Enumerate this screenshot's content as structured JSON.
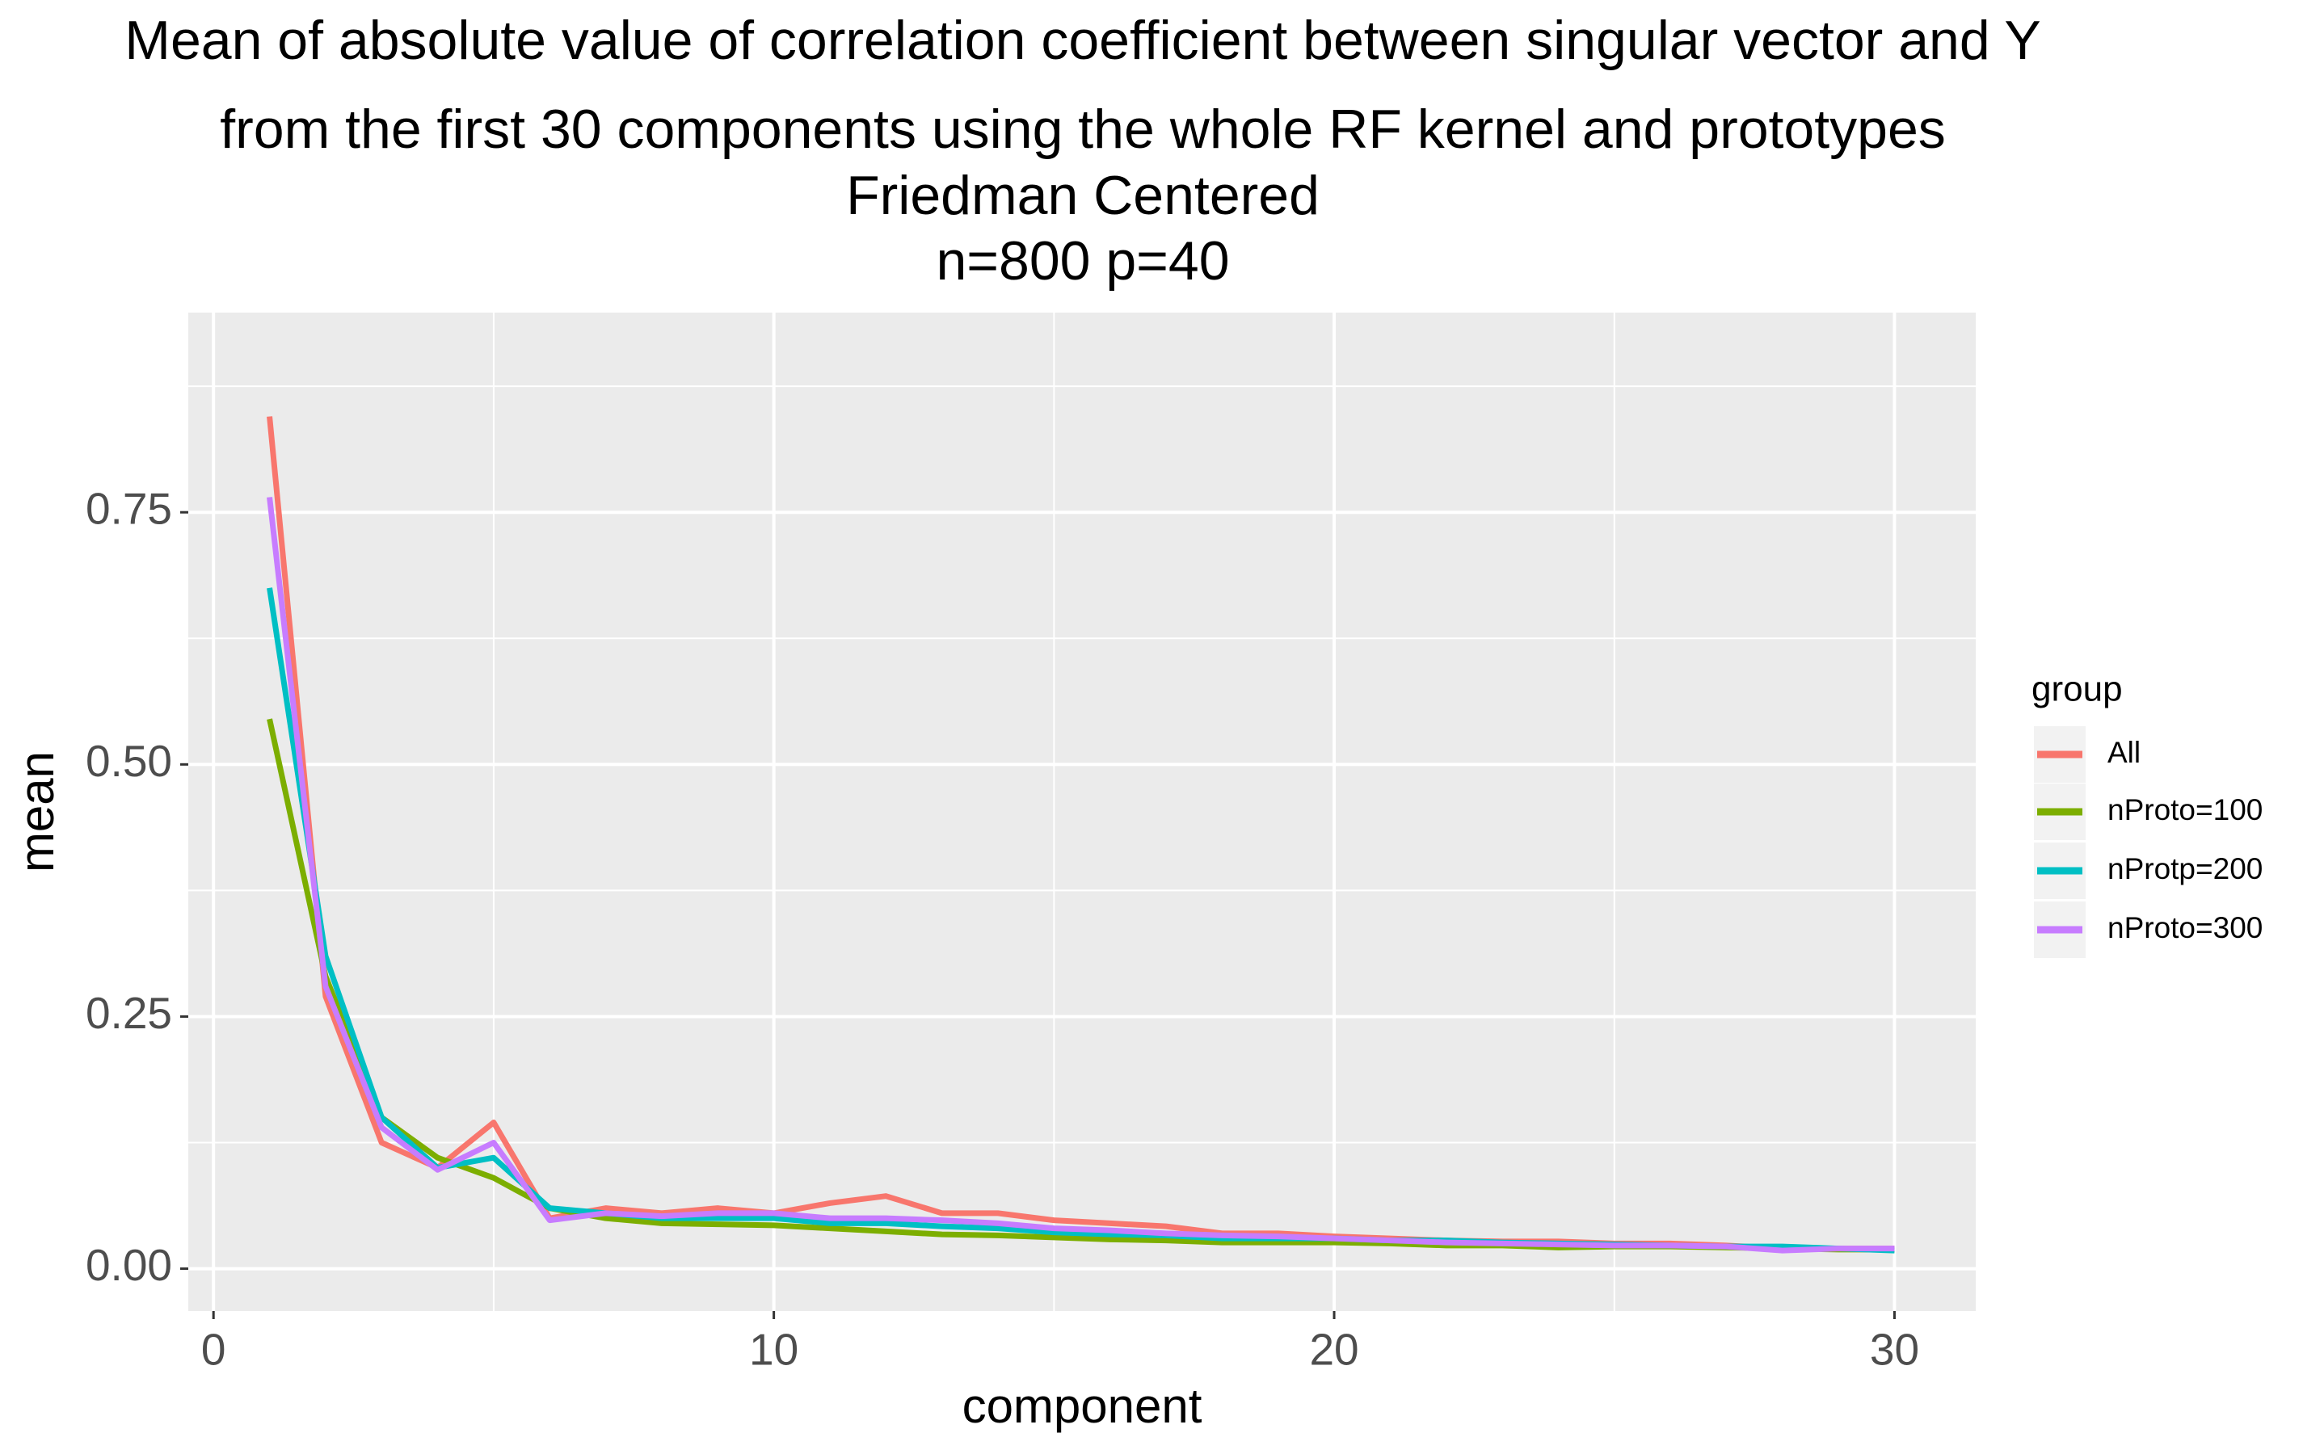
{
  "chart_data": {
    "type": "line",
    "title": [
      "Mean of absolute value of correlation coefficient between singular vector and Y",
      "from the first 30 components using the whole RF kernel and prototypes",
      "Friedman Centered",
      "n=800 p=40"
    ],
    "xlabel": "component",
    "ylabel": "mean",
    "legend_title": "group",
    "legend": "right",
    "grid": true,
    "x": [
      1,
      2,
      3,
      4,
      5,
      6,
      7,
      8,
      9,
      10,
      11,
      12,
      13,
      14,
      15,
      16,
      17,
      18,
      19,
      20,
      21,
      22,
      23,
      24,
      25,
      26,
      27,
      28,
      29,
      30
    ],
    "series": [
      {
        "name": "All",
        "color": "#F8766D",
        "values": [
          0.845,
          0.27,
          0.125,
          0.1,
          0.145,
          0.05,
          0.06,
          0.055,
          0.06,
          0.055,
          0.065,
          0.072,
          0.055,
          0.055,
          0.048,
          0.045,
          0.042,
          0.035,
          0.035,
          0.032,
          0.03,
          0.028,
          0.027,
          0.027,
          0.025,
          0.025,
          0.023,
          0.02,
          0.02,
          0.02
        ]
      },
      {
        "name": "nProto=100",
        "color": "#7CAE00",
        "values": [
          0.545,
          0.29,
          0.15,
          0.11,
          0.09,
          0.06,
          0.05,
          0.045,
          0.044,
          0.043,
          0.04,
          0.037,
          0.034,
          0.033,
          0.031,
          0.029,
          0.028,
          0.026,
          0.026,
          0.026,
          0.025,
          0.023,
          0.023,
          0.021,
          0.022,
          0.022,
          0.021,
          0.02,
          0.019,
          0.019
        ]
      },
      {
        "name": "nProtp=200",
        "color": "#00BFC4",
        "values": [
          0.675,
          0.31,
          0.15,
          0.1,
          0.11,
          0.06,
          0.055,
          0.05,
          0.05,
          0.05,
          0.045,
          0.045,
          0.042,
          0.04,
          0.036,
          0.034,
          0.033,
          0.03,
          0.03,
          0.03,
          0.028,
          0.028,
          0.026,
          0.025,
          0.024,
          0.023,
          0.022,
          0.022,
          0.02,
          0.018
        ]
      },
      {
        "name": "nProto=300",
        "color": "#C77CFF",
        "values": [
          0.765,
          0.28,
          0.14,
          0.098,
          0.125,
          0.048,
          0.055,
          0.052,
          0.055,
          0.055,
          0.05,
          0.05,
          0.048,
          0.045,
          0.04,
          0.038,
          0.035,
          0.033,
          0.032,
          0.03,
          0.028,
          0.026,
          0.025,
          0.024,
          0.023,
          0.023,
          0.022,
          0.018,
          0.02,
          0.02
        ]
      }
    ],
    "xlim": [
      -0.45,
      31.45
    ],
    "ylim": [
      -0.042,
      0.948
    ],
    "xticks": [
      0,
      10,
      20,
      30
    ],
    "x_minor_ticks": [
      5,
      15,
      25
    ],
    "yticks": [
      {
        "value": 0,
        "label": "0.00"
      },
      {
        "value": 0.25,
        "label": "0.25"
      },
      {
        "value": 0.5,
        "label": "0.50"
      },
      {
        "value": 0.75,
        "label": "0.75"
      }
    ],
    "y_minor_ticks": [
      0.125,
      0.375,
      0.625,
      0.875
    ]
  }
}
